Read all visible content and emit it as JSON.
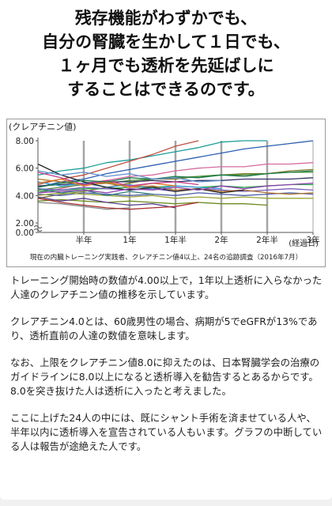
{
  "headline": {
    "line1": "残存機能がわずかでも、",
    "line2": "自分の腎臓を生かして１日でも、",
    "line3": "１ヶ月でも透析を先延ばしに",
    "line4": "することはできるのです。"
  },
  "chart_data": {
    "type": "line",
    "title": "",
    "ylabel": "(クレアチニン値)",
    "xlabel": "(経過日)",
    "note": "現在の内臓トレーニング実践者、クレアチニン値4以上、24名の追跡調査（2016年7月）",
    "ylim": [
      0,
      8
    ],
    "y_ticks": [
      "0.00",
      "2.00",
      "4.00",
      "6.00",
      "8.00"
    ],
    "y_tick_values": [
      0,
      2,
      4,
      6,
      8
    ],
    "y_axis_break": true,
    "x_ticks": [
      "半年",
      "1年",
      "1年半",
      "2年",
      "2年半",
      "3年"
    ],
    "x_tick_values": [
      0.5,
      1,
      1.5,
      2,
      2.5,
      3
    ],
    "xlim": [
      0,
      3
    ],
    "grid": "vertical",
    "series": [
      {
        "x": [
          0,
          0.25,
          0.5,
          0.75,
          1,
          1.25,
          1.5,
          1.75,
          2,
          2.25,
          2.5
        ],
        "values": [
          5.5,
          5.8,
          6.0,
          6.4,
          6.6,
          6.9,
          7.2,
          7.5,
          7.9,
          8.0,
          8.0
        ],
        "color": "#1f9e9a"
      },
      {
        "x": [
          0,
          0.25,
          0.5,
          0.75,
          1,
          1.25,
          1.5,
          1.75,
          2,
          2.25,
          2.5,
          2.75,
          3
        ],
        "values": [
          4.6,
          5.0,
          5.2,
          5.6,
          5.9,
          6.2,
          6.5,
          6.8,
          7.1,
          7.4,
          7.6,
          7.8,
          8.0
        ],
        "color": "#2b5fb0"
      },
      {
        "x": [
          0,
          0.25,
          0.5,
          0.75,
          1,
          1.25,
          1.5,
          1.75
        ],
        "values": [
          4.8,
          5.2,
          5.5,
          6.0,
          6.5,
          7.0,
          7.6,
          8.0
        ],
        "color": "#c0503f"
      },
      {
        "x": [
          0,
          0.25,
          0.5,
          0.75,
          1,
          1.25,
          1.5,
          1.75,
          2,
          2.25,
          2.5,
          2.75,
          3
        ],
        "values": [
          4.2,
          4.5,
          4.9,
          5.1,
          5.4,
          5.5,
          5.8,
          6.0,
          6.1,
          6.1,
          6.3,
          6.3,
          6.4
        ],
        "color": "#d66a9f"
      },
      {
        "x": [
          0,
          0.25,
          0.5,
          0.75,
          1,
          1.25,
          1.5,
          1.75,
          2,
          2.25,
          2.5,
          2.75,
          3
        ],
        "values": [
          3.8,
          4.1,
          4.3,
          4.6,
          4.9,
          5.2,
          5.2,
          5.4,
          5.5,
          5.6,
          5.6,
          5.8,
          5.9
        ],
        "color": "#7a7a2a"
      },
      {
        "x": [
          0,
          0.25,
          0.5,
          0.75,
          1,
          1.25,
          1.5,
          1.75,
          2,
          2.25,
          2.5,
          2.75,
          3
        ],
        "values": [
          4.4,
          4.6,
          4.8,
          4.9,
          5.1,
          5.2,
          5.3,
          5.4,
          5.5,
          5.5,
          5.6,
          5.7,
          5.7
        ],
        "color": "#4a8b3a"
      },
      {
        "x": [
          0,
          0.25,
          0.5,
          0.75,
          1,
          1.25,
          1.5,
          1.75,
          2,
          2.25,
          2.5,
          2.75,
          3
        ],
        "values": [
          4.7,
          4.8,
          4.9,
          5.0,
          5.0,
          5.1,
          5.0,
          5.1,
          5.1,
          5.2,
          5.2,
          5.2,
          5.3
        ],
        "color": "#333366"
      },
      {
        "x": [
          0,
          0.25,
          0.5,
          0.75,
          1,
          1.25,
          1.5,
          1.75,
          2,
          2.25,
          2.5,
          2.75,
          3
        ],
        "values": [
          4.3,
          4.4,
          4.5,
          4.5,
          4.6,
          4.6,
          4.7,
          4.6,
          4.7,
          4.6,
          4.7,
          4.8,
          4.8
        ],
        "color": "#2aa84a"
      },
      {
        "x": [
          0,
          0.25,
          0.5,
          0.75,
          1,
          1.25,
          1.5,
          1.75,
          2,
          2.25,
          2.5,
          2.75,
          3
        ],
        "values": [
          4.5,
          4.4,
          4.6,
          4.5,
          4.4,
          4.5,
          4.3,
          4.5,
          4.4,
          4.3,
          4.4,
          4.5,
          4.4
        ],
        "color": "#7b5cc2"
      },
      {
        "x": [
          0,
          0.25,
          0.5,
          0.75,
          1,
          1.25,
          1.5,
          1.75,
          2,
          2.25,
          2.5,
          2.75,
          3
        ],
        "values": [
          4.1,
          4.0,
          4.2,
          4.1,
          4.0,
          4.1,
          4.0,
          4.2,
          4.1,
          4.0,
          4.1,
          4.2,
          4.1
        ],
        "color": "#4b5ea8"
      },
      {
        "x": [
          0,
          0.25,
          0.5,
          0.75,
          1,
          1.25,
          1.5,
          1.75,
          2,
          2.25,
          2.5,
          2.75,
          3
        ],
        "values": [
          4.0,
          4.2,
          4.1,
          4.0,
          3.9,
          4.0,
          3.8,
          3.9,
          3.8,
          3.9,
          3.8,
          3.8,
          3.8
        ],
        "color": "#9aa53a"
      },
      {
        "x": [
          0,
          0.25,
          0.5,
          0.75,
          1,
          1.25,
          1.5,
          1.75,
          2,
          2.25,
          2.5
        ],
        "values": [
          3.6,
          3.7,
          3.6,
          3.5,
          3.6,
          3.5,
          3.4,
          3.5,
          3.4,
          3.4,
          3.3
        ],
        "color": "#6d8a1f"
      },
      {
        "x": [
          0,
          0.25,
          0.5,
          0.75,
          1,
          1.25,
          1.5,
          1.75,
          2,
          2.25,
          2.5,
          2.75,
          3
        ],
        "values": [
          5.2,
          5.0,
          4.8,
          4.9,
          4.6,
          4.7,
          4.4,
          4.5,
          4.3,
          4.4,
          4.2,
          4.1,
          4.2
        ],
        "color": "#b0742a"
      },
      {
        "x": [
          0,
          0.25,
          0.5,
          0.75,
          1,
          1.25,
          1.5,
          1.75,
          2
        ],
        "values": [
          5.0,
          4.7,
          4.9,
          4.6,
          4.8,
          4.5,
          4.7,
          4.6,
          4.5
        ],
        "color": "#3b9bd6"
      },
      {
        "x": [
          0,
          0.25,
          0.5,
          0.75,
          1,
          1.25,
          1.5
        ],
        "values": [
          4.9,
          5.2,
          4.7,
          5.0,
          4.6,
          4.9,
          4.7
        ],
        "color": "#e07b2a"
      },
      {
        "x": [
          0,
          0.25,
          0.5,
          0.75,
          1,
          1.25,
          1.5,
          1.75,
          2,
          2.25
        ],
        "values": [
          6.3,
          5.5,
          5.0,
          4.6,
          4.4,
          4.6,
          4.3,
          4.5,
          4.2,
          4.4
        ],
        "color": "#222222"
      },
      {
        "x": [
          0,
          0.25,
          0.5,
          0.75,
          1,
          1.25,
          1.5,
          1.75
        ],
        "values": [
          5.7,
          5.3,
          4.8,
          5.1,
          4.7,
          4.9,
          5.0,
          4.8
        ],
        "color": "#c43c8b"
      },
      {
        "x": [
          0,
          0.25,
          0.5,
          0.75,
          1,
          1.25
        ],
        "values": [
          4.5,
          4.2,
          4.4,
          4.0,
          4.3,
          4.1
        ],
        "color": "#2f7f7f"
      },
      {
        "x": [
          0,
          0.25,
          0.5,
          0.75,
          1,
          1.25,
          1.5
        ],
        "values": [
          3.9,
          3.6,
          3.8,
          3.5,
          3.3,
          3.4,
          3.1
        ],
        "color": "#5a3f8c"
      },
      {
        "x": [
          0,
          0.25,
          0.5,
          0.75,
          1
        ],
        "values": [
          3.5,
          3.4,
          3.2,
          3.0,
          3.1
        ],
        "color": "#888888"
      },
      {
        "x": [
          0,
          0.25,
          0.5,
          0.75,
          1,
          1.25,
          1.5,
          1.75
        ],
        "values": [
          3.8,
          3.5,
          3.3,
          3.1,
          3.0,
          3.1,
          3.2,
          3.5
        ],
        "color": "#a83232"
      },
      {
        "x": [
          0,
          0.25,
          0.5,
          0.75,
          1,
          1.25,
          1.5,
          1.75,
          2,
          2.25,
          2.5,
          2.75,
          3
        ],
        "values": [
          4.6,
          4.9,
          5.1,
          5.0,
          5.3,
          5.2,
          5.4,
          5.3,
          5.5,
          5.4,
          5.6,
          5.7,
          5.8
        ],
        "color": "#1a7a4a"
      },
      {
        "x": [
          0,
          0.25,
          0.5,
          0.75,
          1,
          1.25,
          1.5,
          1.75,
          2
        ],
        "values": [
          5.8,
          5.5,
          5.7,
          5.4,
          5.6,
          5.2,
          5.3,
          5.0,
          5.1
        ],
        "color": "#5f8fd0"
      },
      {
        "x": [
          0,
          0.25,
          0.5,
          0.75,
          1,
          1.25,
          1.5,
          1.75,
          2,
          2.25,
          2.5,
          2.75,
          3
        ],
        "values": [
          4.2,
          4.3,
          4.4,
          4.2,
          4.5,
          4.4,
          4.6,
          4.4,
          4.7,
          4.5,
          4.7,
          4.8,
          4.9
        ],
        "color": "#8e44ad"
      }
    ]
  },
  "paragraphs": [
    "トレーニング開始時の数値が4.00以上で，1年以上透析に入らなかった人達のクレアチニン値の推移を示しています。",
    "クレアチニン4.0とは、60歳男性の場合、病期が5でeGFRが13%であり、透析直前の人達の数値を意味します。",
    "なお、上限をクレアチニン値8.0に抑えたのは、日本腎臓学会の治療のガイドラインに8.0以上になると透析導入を勧告するとあるからです。8.0を突き抜けた人は透析に入ったと考えました。",
    "ここに上げた24人の中には、既にシャント手術を済ませている人や、半年以内に透析導入を宣告されている人もいます。グラフの中断している人は報告が途絶えた人です。"
  ]
}
